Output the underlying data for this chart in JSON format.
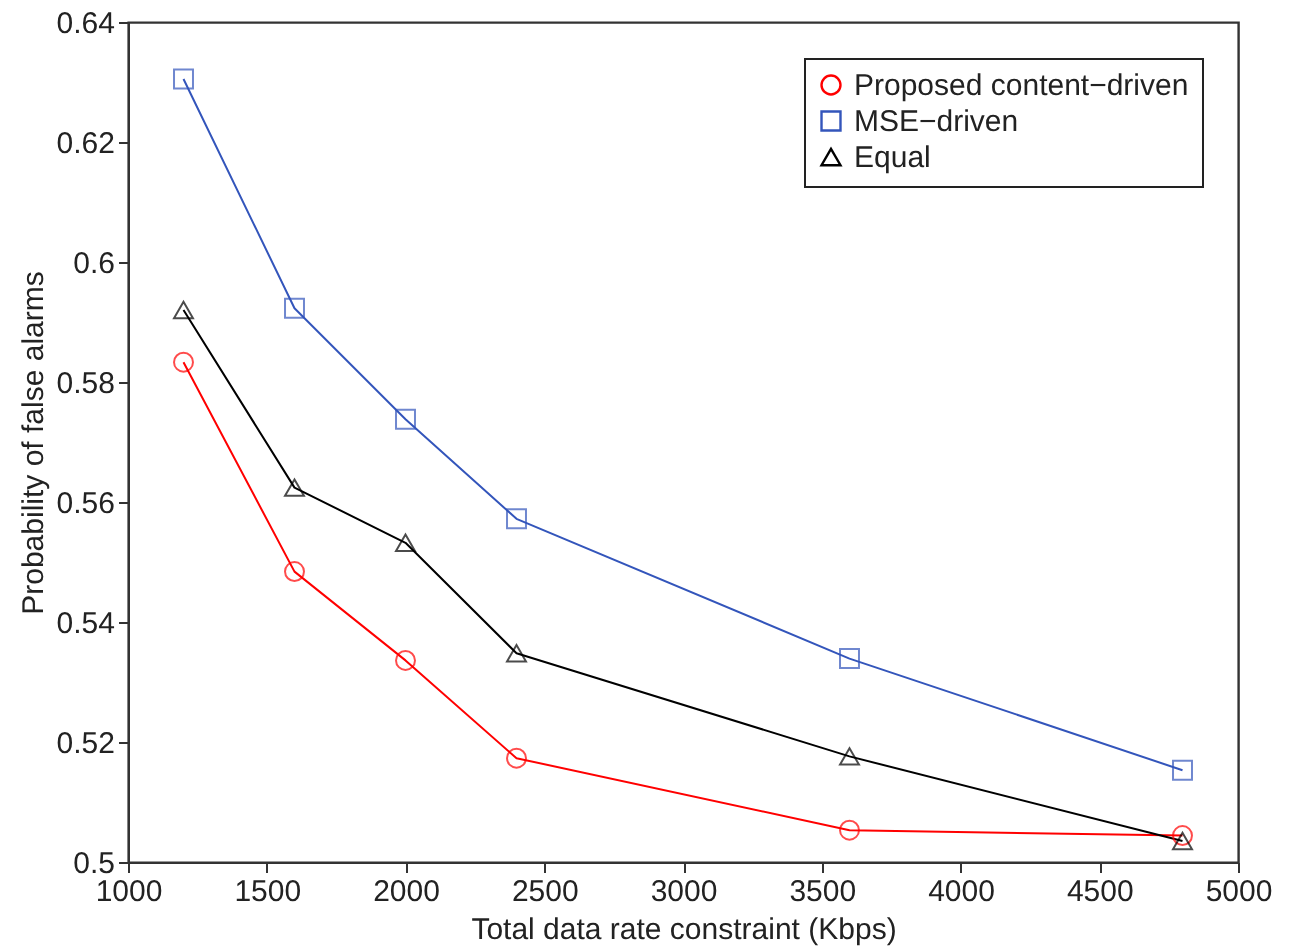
{
  "chart_data": {
    "type": "line",
    "xlabel": "Total data rate constraint (Kbps)",
    "ylabel": "Probability of false alarms",
    "x": [
      1200,
      1600,
      2000,
      2400,
      3600,
      4800
    ],
    "series": [
      {
        "name": "Proposed content−driven",
        "color": "#ff0000",
        "marker": "circle",
        "values": [
          0.5833,
          0.5484,
          0.5336,
          0.5173,
          0.5053,
          0.5044
        ]
      },
      {
        "name": "MSE−driven",
        "color": "#3355bb",
        "marker": "square",
        "values": [
          0.6305,
          0.5923,
          0.5738,
          0.5572,
          0.5339,
          0.5153
        ]
      },
      {
        "name": "Equal",
        "color": "#000000",
        "marker": "triangle",
        "values": [
          0.592,
          0.5624,
          0.5532,
          0.5348,
          0.5176,
          0.5035
        ]
      }
    ],
    "xlim": [
      1000,
      5000
    ],
    "xticks": [
      1000,
      1500,
      2000,
      2500,
      3000,
      3500,
      4000,
      4500,
      5000
    ],
    "ylim": [
      0.5,
      0.64
    ],
    "yticks": [
      0.5,
      0.52,
      0.54,
      0.56,
      0.58,
      0.6,
      0.62,
      0.64
    ],
    "grid": false,
    "legend": "top right"
  }
}
